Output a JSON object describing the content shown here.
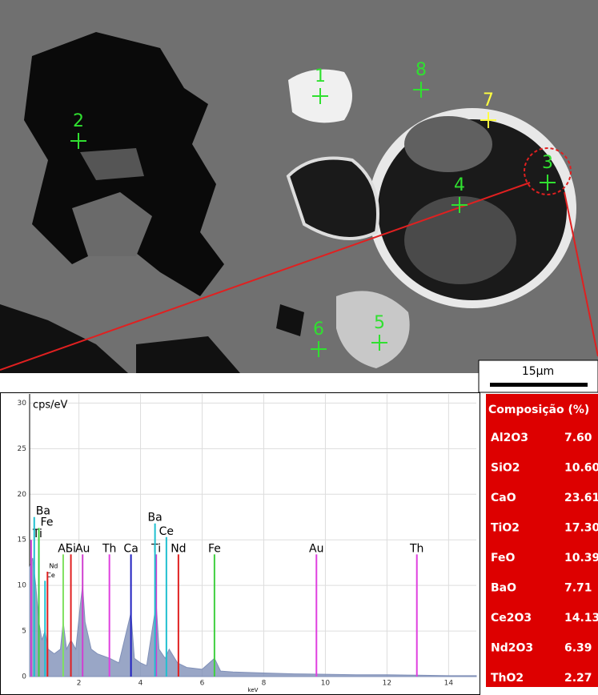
{
  "image": {
    "points": [
      {
        "label": "1"
      },
      {
        "label": "2"
      },
      {
        "label": "3"
      },
      {
        "label": "4"
      },
      {
        "label": "5"
      },
      {
        "label": "6"
      },
      {
        "label": "7"
      },
      {
        "label": "8"
      }
    ],
    "scale_bar": "15µm"
  },
  "chart_data": {
    "type": "area",
    "y_label": "cps/eV",
    "x_label": "keV",
    "xlim": [
      0.4,
      14.9
    ],
    "ylim": [
      0,
      31
    ],
    "xticks": [
      2,
      4,
      6,
      8,
      10,
      12,
      14
    ],
    "yticks": [
      0,
      5,
      10,
      15,
      20,
      25,
      30
    ],
    "grid": true,
    "color": "#8090b8",
    "x": [
      0.4,
      0.5,
      0.6,
      0.7,
      0.8,
      0.9,
      1.0,
      1.2,
      1.4,
      1.49,
      1.6,
      1.74,
      1.9,
      2.05,
      2.12,
      2.2,
      2.4,
      2.6,
      3.0,
      3.3,
      3.69,
      3.8,
      4.0,
      4.2,
      4.51,
      4.6,
      4.8,
      4.93,
      5.2,
      5.5,
      6.0,
      6.4,
      6.6,
      7,
      8,
      9,
      10,
      11,
      12,
      13,
      14,
      14.9
    ],
    "values": [
      12,
      13,
      10,
      6,
      4,
      5,
      3,
      2.5,
      3,
      6,
      3,
      4,
      3,
      8,
      10,
      6,
      3,
      2.5,
      2,
      1.5,
      7,
      2,
      1.5,
      1.2,
      8,
      3,
      2,
      3,
      1.5,
      1,
      0.8,
      2,
      0.6,
      0.5,
      0.4,
      0.3,
      0.25,
      0.2,
      0.2,
      0.15,
      0.1,
      0.1
    ],
    "peaks": [
      {
        "label": "Ti",
        "x": 0.45,
        "value": 15,
        "color": "#d040d0"
      },
      {
        "label": "Ba",
        "x": 0.55,
        "value": 17.5,
        "color": "#20c0d0"
      },
      {
        "label": "Fe",
        "x": 0.7,
        "value": 16.3,
        "color": "#40d040"
      },
      {
        "label": "Ce",
        "x": 0.9,
        "value": 10.5,
        "color": "#20c0d0"
      },
      {
        "label": "Nd",
        "x": 0.98,
        "value": 11.5,
        "color": "#e02020"
      },
      {
        "label": "Al",
        "x": 1.49,
        "value": 13.4,
        "color": "#80e060"
      },
      {
        "label": "Si",
        "x": 1.74,
        "value": 13.4,
        "color": "#e02020"
      },
      {
        "label": "Au",
        "x": 2.12,
        "value": 13.4,
        "color": "#d040d0"
      },
      {
        "label": "Th",
        "x": 2.99,
        "value": 13.4,
        "color": "#e040e0"
      },
      {
        "label": "Ca",
        "x": 3.69,
        "value": 13.4,
        "color": "#2020c0"
      },
      {
        "label": "Ti",
        "x": 4.51,
        "value": 13.4,
        "color": "#d040d0"
      },
      {
        "label": "Ba",
        "x": 4.47,
        "value": 16.8,
        "color": "#20c0d0"
      },
      {
        "label": "Ce",
        "x": 4.84,
        "value": 15.3,
        "color": "#20c0d0"
      },
      {
        "label": "Nd",
        "x": 5.23,
        "value": 13.4,
        "color": "#e02020"
      },
      {
        "label": "Fe",
        "x": 6.4,
        "value": 13.4,
        "color": "#40d040"
      },
      {
        "label": "Au",
        "x": 9.71,
        "value": 13.4,
        "color": "#e040e0"
      },
      {
        "label": "Th",
        "x": 12.97,
        "value": 13.4,
        "color": "#e040e0"
      }
    ]
  },
  "table": {
    "header": "Composição (%)",
    "rows": [
      [
        "Al2O3",
        "7.60"
      ],
      [
        "SiO2",
        "10.60"
      ],
      [
        "CaO",
        "23.61"
      ],
      [
        "TiO2",
        "17.30"
      ],
      [
        "FeO",
        "10.39"
      ],
      [
        "BaO",
        "7.71"
      ],
      [
        "Ce2O3",
        "14.13"
      ],
      [
        "Nd2O3",
        "6.39"
      ],
      [
        "ThO2",
        "2.27"
      ]
    ]
  }
}
